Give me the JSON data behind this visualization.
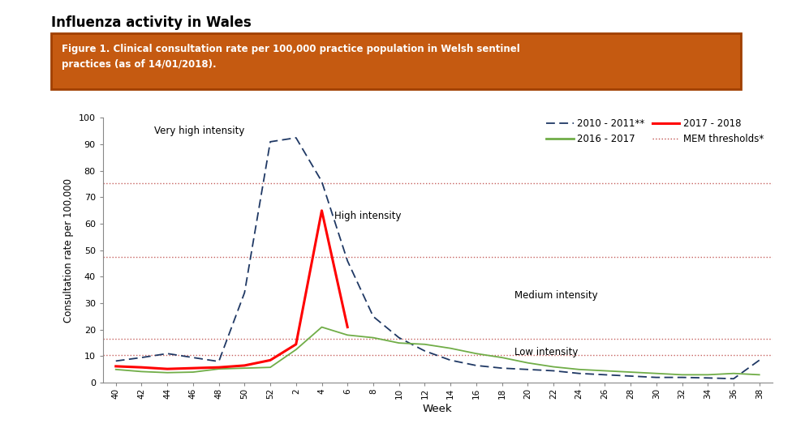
{
  "title": "Influenza activity in Wales",
  "subtitle": "Figure 1. Clinical consultation rate per 100,000 practice population in Welsh sentinel\npractices (as of 14/01/2018).",
  "ylabel": "Consultation rate per 100,000",
  "xlabel": "Week",
  "ylim": [
    0,
    100
  ],
  "yticks": [
    0,
    10,
    20,
    30,
    40,
    50,
    60,
    70,
    80,
    90,
    100
  ],
  "x_labels": [
    "40",
    "42",
    "44",
    "46",
    "48",
    "50",
    "52",
    "2",
    "4",
    "6",
    "8",
    "10",
    "12",
    "14",
    "16",
    "18",
    "20",
    "22",
    "24",
    "26",
    "28",
    "30",
    "32",
    "34",
    "36",
    "38"
  ],
  "mem_thresholds": [
    10.5,
    16.5,
    47.5,
    75.5
  ],
  "mem_color": "#c0504d",
  "series_2010": [
    8.2,
    9.5,
    11.0,
    9.5,
    8.0,
    34.0,
    91.0,
    92.5,
    76.0,
    46.0,
    25.0,
    17.0,
    12.0,
    8.5,
    6.5,
    5.5,
    5.0,
    4.5,
    3.5,
    3.0,
    2.5,
    2.0,
    2.0,
    1.8,
    1.5,
    8.5
  ],
  "series_2016": [
    5.0,
    4.2,
    3.8,
    4.0,
    5.2,
    5.5,
    5.8,
    12.5,
    21.0,
    18.0,
    17.0,
    15.0,
    14.5,
    13.0,
    11.0,
    9.5,
    7.5,
    6.0,
    5.0,
    4.5,
    4.0,
    3.5,
    3.0,
    3.0,
    3.5,
    3.0
  ],
  "series_2017": [
    6.2,
    5.8,
    5.2,
    5.5,
    5.8,
    6.5,
    8.5,
    14.5,
    65.0,
    21.0,
    null,
    null,
    null,
    null,
    null,
    null,
    null,
    null,
    null,
    null,
    null,
    null,
    null,
    null,
    null,
    null
  ],
  "color_2010": "#1f3864",
  "color_2016": "#70ad47",
  "color_2017": "#ff0000",
  "background_color": "#ffffff",
  "subtitle_bg_color": "#c55a11",
  "subtitle_text_color": "#ffffff",
  "intensity_texts": [
    "Very high intensity",
    "High intensity",
    "Medium intensity",
    "Low intensity"
  ],
  "intensity_xi": [
    1.5,
    8.5,
    15.5,
    15.5
  ],
  "intensity_yi": [
    97,
    65,
    35,
    13.5
  ],
  "legend_labels": [
    "2010 - 2011**",
    "2016 - 2017",
    "2017 - 2018",
    "MEM thresholds*"
  ]
}
